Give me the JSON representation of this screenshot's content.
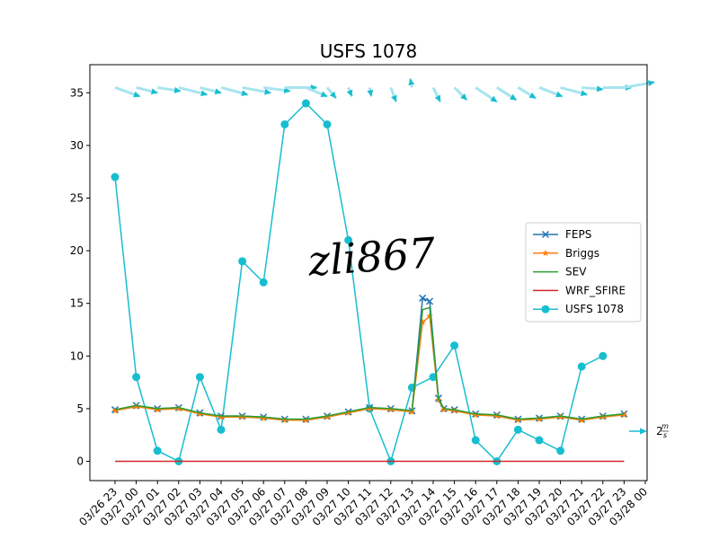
{
  "chart_data": {
    "type": "line",
    "title": "USFS 1078",
    "xlabel": "",
    "ylabel": "",
    "ylim": [
      -1.8,
      37.3
    ],
    "yticks": [
      0,
      5,
      10,
      15,
      20,
      25,
      30,
      35
    ],
    "ytick_labels": [
      "0",
      "5",
      "10",
      "15",
      "20",
      "25",
      "30",
      "35"
    ],
    "xtick_labels": [
      "03/26 23",
      "03/27 00",
      "03/27 01",
      "03/27 02",
      "03/27 03",
      "03/27 04",
      "03/27 05",
      "03/27 06",
      "03/27 07",
      "03/27 08",
      "03/27 09",
      "03/27 10",
      "03/27 11",
      "03/27 12",
      "03/27 13",
      "03/27 14",
      "03/27 15",
      "03/27 16",
      "03/27 17",
      "03/27 18",
      "03/27 19",
      "03/27 20",
      "03/27 21",
      "03/27 22",
      "03/27 23",
      "03/28 00"
    ],
    "legend_position": "center-right",
    "grid": false,
    "series": [
      {
        "name": "FEPS",
        "color": "#1f77b4",
        "marker": "x",
        "x": [
          "03/26 23:00",
          "03/27 00:00",
          "03/27 01:00",
          "03/27 02:00",
          "03/27 03:00",
          "03/27 04:00",
          "03/27 05:00",
          "03/27 06:00",
          "03/27 07:00",
          "03/27 08:00",
          "03/27 09:00",
          "03/27 10:00",
          "03/27 11:00",
          "03/27 12:00",
          "03/27 13:00",
          "03/27 13:30",
          "03/27 13:50",
          "03/27 14:15",
          "03/27 14:30",
          "03/27 15:00",
          "03/27 16:00",
          "03/27 17:00",
          "03/27 18:00",
          "03/27 19:00",
          "03/27 20:00",
          "03/27 21:00",
          "03/27 22:00",
          "03/27 23:00"
        ],
        "y": [
          4.9,
          5.3,
          5.0,
          5.1,
          4.6,
          4.3,
          4.3,
          4.2,
          4.0,
          4.0,
          4.3,
          4.7,
          5.1,
          5.0,
          4.8,
          15.5,
          15.2,
          6.0,
          5.0,
          4.9,
          4.5,
          4.4,
          4.0,
          4.1,
          4.3,
          4.0,
          4.3,
          4.5
        ]
      },
      {
        "name": "Briggs",
        "color": "#ff7f0e",
        "marker": "*",
        "x": [
          "03/26 23:00",
          "03/27 00:00",
          "03/27 01:00",
          "03/27 02:00",
          "03/27 03:00",
          "03/27 04:00",
          "03/27 05:00",
          "03/27 06:00",
          "03/27 07:00",
          "03/27 08:00",
          "03/27 09:00",
          "03/27 10:00",
          "03/27 11:00",
          "03/27 12:00",
          "03/27 13:00",
          "03/27 13:30",
          "03/27 13:50",
          "03/27 14:15",
          "03/27 14:30",
          "03/27 15:00",
          "03/27 16:00",
          "03/27 17:00",
          "03/27 18:00",
          "03/27 19:00",
          "03/27 20:00",
          "03/27 21:00",
          "03/27 22:00",
          "03/27 23:00"
        ],
        "y": [
          4.8,
          5.2,
          4.9,
          5.0,
          4.5,
          4.2,
          4.2,
          4.1,
          3.9,
          3.9,
          4.2,
          4.6,
          5.0,
          4.9,
          4.7,
          13.2,
          13.8,
          5.8,
          4.9,
          4.8,
          4.4,
          4.3,
          3.9,
          4.0,
          4.2,
          3.9,
          4.2,
          4.4
        ]
      },
      {
        "name": "SEV",
        "color": "#2ca02c",
        "marker": "none",
        "x": [
          "03/26 23:00",
          "03/27 00:00",
          "03/27 01:00",
          "03/27 02:00",
          "03/27 03:00",
          "03/27 04:00",
          "03/27 05:00",
          "03/27 06:00",
          "03/27 07:00",
          "03/27 08:00",
          "03/27 09:00",
          "03/27 10:00",
          "03/27 11:00",
          "03/27 12:00",
          "03/27 13:00",
          "03/27 13:30",
          "03/27 13:50",
          "03/27 14:15",
          "03/27 14:30",
          "03/27 15:00",
          "03/27 16:00",
          "03/27 17:00",
          "03/27 18:00",
          "03/27 19:00",
          "03/27 20:00",
          "03/27 21:00",
          "03/27 22:00",
          "03/27 23:00"
        ],
        "y": [
          4.9,
          5.3,
          5.0,
          5.1,
          4.6,
          4.3,
          4.3,
          4.2,
          4.0,
          4.0,
          4.3,
          4.7,
          5.1,
          5.0,
          4.8,
          14.4,
          14.6,
          5.9,
          5.0,
          4.9,
          4.5,
          4.4,
          4.0,
          4.1,
          4.3,
          4.0,
          4.3,
          4.5
        ]
      },
      {
        "name": "WRF_SFIRE",
        "color": "#d62728",
        "marker": "none",
        "x": [
          "03/26 23:00",
          "03/27 23:00"
        ],
        "y": [
          0,
          0
        ]
      },
      {
        "name": "USFS 1078",
        "color": "#17becf",
        "marker": "o",
        "x": [
          "03/26 23:00",
          "03/27 00:00",
          "03/27 01:00",
          "03/27 02:00",
          "03/27 03:00",
          "03/27 04:00",
          "03/27 05:00",
          "03/27 06:00",
          "03/27 07:00",
          "03/27 08:00",
          "03/27 09:00",
          "03/27 10:00",
          "03/27 11:00",
          "03/27 12:00",
          "03/27 13:00",
          "03/27 14:00",
          "03/27 15:00",
          "03/27 16:00",
          "03/27 17:00",
          "03/27 18:00",
          "03/27 19:00",
          "03/27 20:00",
          "03/27 21:00",
          "03/27 22:00"
        ],
        "y": [
          27,
          8,
          1,
          0,
          8,
          3,
          19,
          17,
          32,
          34,
          32,
          21,
          5,
          0,
          7,
          8,
          11,
          2,
          0,
          3,
          2,
          1,
          9,
          10
        ]
      }
    ],
    "wind_barbs": {
      "y_level": 35.5,
      "color": "#17becf",
      "light_color": "#a6e4ef",
      "x": [
        "03/26 23:00",
        "03/27 00:00",
        "03/27 01:00",
        "03/27 02:00",
        "03/27 03:00",
        "03/27 04:00",
        "03/27 05:00",
        "03/27 06:00",
        "03/27 07:00",
        "03/27 08:00",
        "03/27 09:00",
        "03/27 10:00",
        "03/27 11:00",
        "03/27 12:00",
        "03/27 13:00",
        "03/27 14:00",
        "03/27 15:00",
        "03/27 16:00",
        "03/27 17:00",
        "03/27 18:00",
        "03/27 19:00",
        "03/27 20:00",
        "03/27 21:00",
        "03/27 22:00",
        "03/27 23:00"
      ],
      "u": [
        1.4,
        1.2,
        1.3,
        1.6,
        1.2,
        1.5,
        1.6,
        1.5,
        1.8,
        1.2,
        0.5,
        0.2,
        0.1,
        0.3,
        -0.1,
        0.4,
        0.7,
        1.2,
        1.1,
        1.0,
        1.3,
        1.5,
        1.2,
        1.6,
        1.7
      ],
      "v": [
        -0.5,
        -0.3,
        -0.2,
        -0.4,
        -0.3,
        -0.4,
        -0.3,
        -0.2,
        0.0,
        -0.5,
        -0.6,
        -0.5,
        -0.5,
        -0.8,
        0.5,
        -0.8,
        -0.7,
        -0.8,
        -0.7,
        -0.6,
        -0.5,
        -0.4,
        -0.1,
        0.0,
        0.3
      ],
      "key_label_num": "2",
      "key_label_frac_top": "m",
      "key_label_frac_bottom": "s"
    },
    "watermark": "zli867"
  }
}
